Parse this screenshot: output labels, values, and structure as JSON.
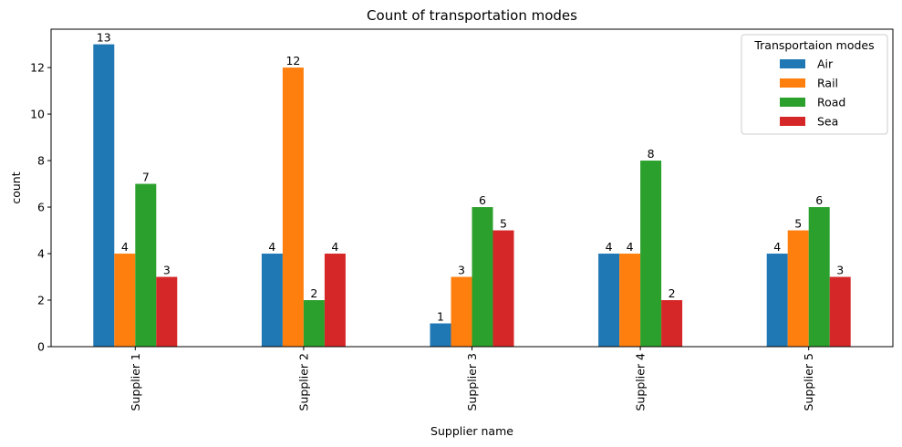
{
  "chart_data": {
    "type": "bar",
    "title": "Count of transportation modes",
    "xlabel": "Supplier name",
    "ylabel": "count",
    "categories": [
      "Supplier 1",
      "Supplier 2",
      "Supplier 3",
      "Supplier 4",
      "Supplier 5"
    ],
    "series": [
      {
        "name": "Air",
        "color": "#1f77b4",
        "values": [
          13,
          4,
          1,
          4,
          4
        ]
      },
      {
        "name": "Rail",
        "color": "#ff7f0e",
        "values": [
          4,
          12,
          3,
          4,
          5
        ]
      },
      {
        "name": "Road",
        "color": "#2ca02c",
        "values": [
          7,
          2,
          6,
          8,
          6
        ]
      },
      {
        "name": "Sea",
        "color": "#d62728",
        "values": [
          3,
          4,
          5,
          2,
          3
        ]
      }
    ],
    "ylim": [
      0,
      13.65
    ],
    "yticks": [
      0,
      2,
      4,
      6,
      8,
      10,
      12
    ],
    "grid": false,
    "legend": {
      "title": "Transportaion modes",
      "placement": "top-right"
    },
    "x_tick_rotation": "vertical",
    "bar_labels": true
  }
}
